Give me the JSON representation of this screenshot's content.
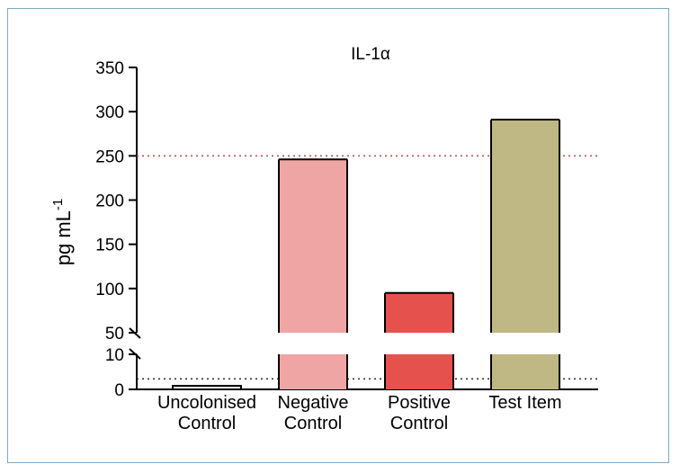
{
  "chart_data": {
    "type": "bar",
    "title": "IL-1α",
    "ylabel": "pg mL",
    "ylabel_superscript": "-1",
    "categories": [
      {
        "line1": "Uncolonised",
        "line2": "Control"
      },
      {
        "line1": "Negative",
        "line2": "Control"
      },
      {
        "line1": "Positive",
        "line2": "Control"
      },
      {
        "line1": "Test Item",
        "line2": ""
      }
    ],
    "values": [
      1,
      246,
      95,
      291
    ],
    "colors": [
      "#ffffff",
      "#f0a5a5",
      "#e5524d",
      "#bfb784"
    ],
    "y_axis": {
      "broken": true,
      "lower_segment": {
        "range": [
          0,
          10
        ],
        "ticks": [
          "0",
          "10"
        ]
      },
      "upper_segment": {
        "range": [
          50,
          350
        ],
        "ticks": [
          "50",
          "100",
          "150",
          "200",
          "250",
          "300",
          "350"
        ]
      }
    },
    "reference_lines": [
      {
        "value": 250,
        "color": "#c0504d",
        "style": "dotted"
      },
      {
        "value": 3,
        "color": "#333333",
        "style": "dotted"
      }
    ],
    "grid": false,
    "legend": "none"
  }
}
